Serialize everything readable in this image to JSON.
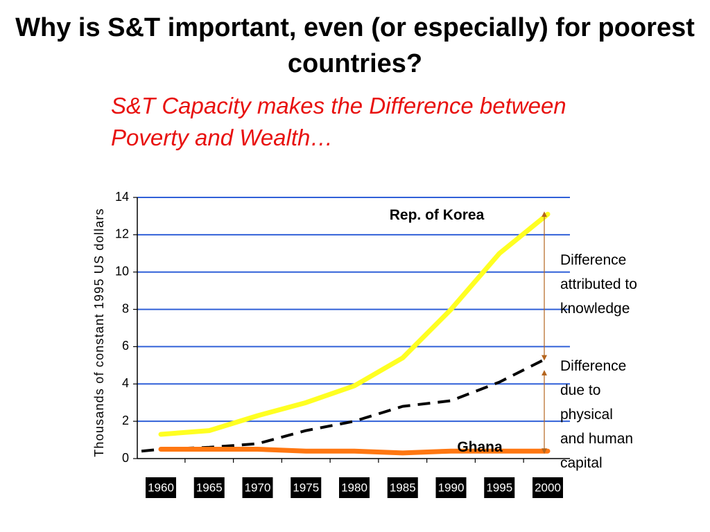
{
  "slide": {
    "title": "Why is S&T important, even (or especially) for poorest countries?",
    "subtitle": "S&T Capacity makes the Difference between Poverty and Wealth…"
  },
  "chart_data": {
    "type": "line",
    "title": "",
    "xlabel": "",
    "ylabel": "Thousands of constant 1995 US dollars",
    "categories": [
      "1960",
      "1965",
      "1970",
      "1975",
      "1980",
      "1985",
      "1990",
      "1995",
      "2000"
    ],
    "ylim": [
      0,
      14
    ],
    "yticks": [
      0,
      2,
      4,
      6,
      8,
      10,
      12,
      14
    ],
    "grid": true,
    "series": [
      {
        "name": "Rep. of Korea",
        "color": "#ffff22",
        "style": "solid",
        "x": [
          1960,
          1965,
          1970,
          1975,
          1980,
          1985,
          1990,
          1995,
          2000
        ],
        "values": [
          1.3,
          1.5,
          2.3,
          3.0,
          3.9,
          5.4,
          8.0,
          11.0,
          13.1
        ]
      },
      {
        "name": "",
        "color": "#000000",
        "style": "dashed",
        "x": [
          1958,
          1960,
          1965,
          1970,
          1975,
          1980,
          1985,
          1990,
          1995,
          2000
        ],
        "values": [
          0.4,
          0.5,
          0.6,
          0.8,
          1.5,
          2.0,
          2.8,
          3.1,
          4.1,
          5.4
        ]
      },
      {
        "name": "Ghana",
        "color": "#ff7711",
        "style": "solid",
        "x": [
          1960,
          1965,
          1970,
          1975,
          1980,
          1985,
          1990,
          1995,
          2000
        ],
        "values": [
          0.5,
          0.5,
          0.5,
          0.4,
          0.4,
          0.3,
          0.4,
          0.4,
          0.4
        ]
      }
    ],
    "annotations": [
      {
        "text": "Difference attributed to knowledge",
        "lines": [
          "Difference",
          "attributed to",
          "knowledge"
        ],
        "from": 5.4,
        "to": 13.1
      },
      {
        "text": "Difference due to physical and human capital",
        "lines": [
          "Difference",
          "due to",
          "physical",
          "and human",
          "capital"
        ],
        "from": 0.4,
        "to": 4.6
      }
    ]
  }
}
